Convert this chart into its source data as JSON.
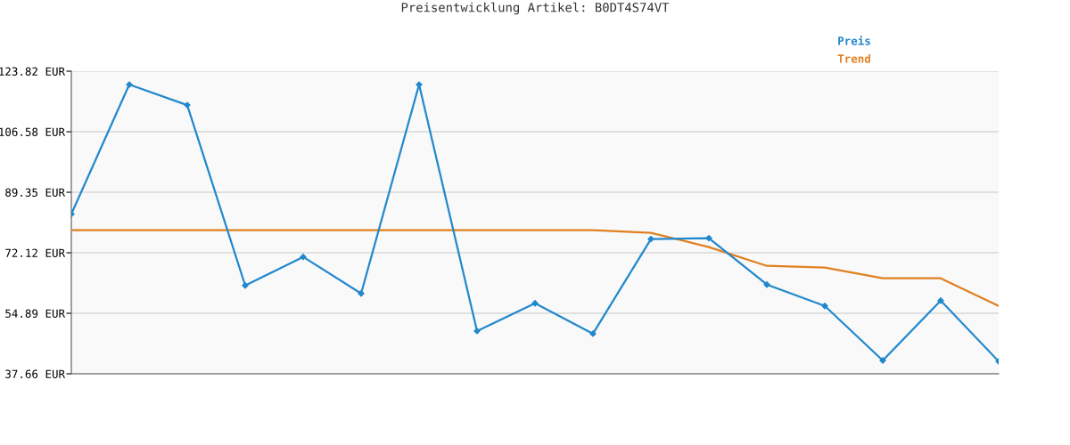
{
  "chart_data": {
    "type": "line",
    "title": "Preisentwicklung Artikel: B0DT4S74VT",
    "categories": [
      null,
      null,
      null,
      null,
      null,
      null,
      null,
      null,
      null,
      null,
      null,
      null,
      null,
      null,
      null,
      null,
      null
    ],
    "series": [
      {
        "name": "Preis",
        "color": "#2288cc",
        "marker": "diamond",
        "values": [
          83.15,
          120.0,
          114.16,
          62.81,
          70.95,
          60.53,
          120.0,
          49.85,
          57.73,
          49.09,
          76.03,
          76.29,
          63.07,
          56.97,
          41.46,
          58.49,
          41.21
        ]
      },
      {
        "name": "Trend",
        "color": "#e08020",
        "marker": "none",
        "values": [
          78.57,
          78.57,
          78.57,
          78.57,
          78.57,
          78.57,
          78.57,
          78.57,
          78.57,
          78.57,
          77.81,
          73.74,
          68.4,
          67.9,
          64.85,
          64.85,
          56.97
        ]
      }
    ],
    "ylim": [
      37.66,
      123.82
    ],
    "yticks": [
      {
        "value": 37.66,
        "label": "37.66 EUR"
      },
      {
        "value": 54.89,
        "label": "54.89 EUR"
      },
      {
        "value": 72.12,
        "label": "72.12 EUR"
      },
      {
        "value": 89.35,
        "label": "89.35 EUR"
      },
      {
        "value": 106.58,
        "label": "106.58 EUR"
      },
      {
        "value": 123.82,
        "label": "123.82 EUR"
      }
    ],
    "grid": "y",
    "legend": "top right",
    "line_style": "solid"
  }
}
